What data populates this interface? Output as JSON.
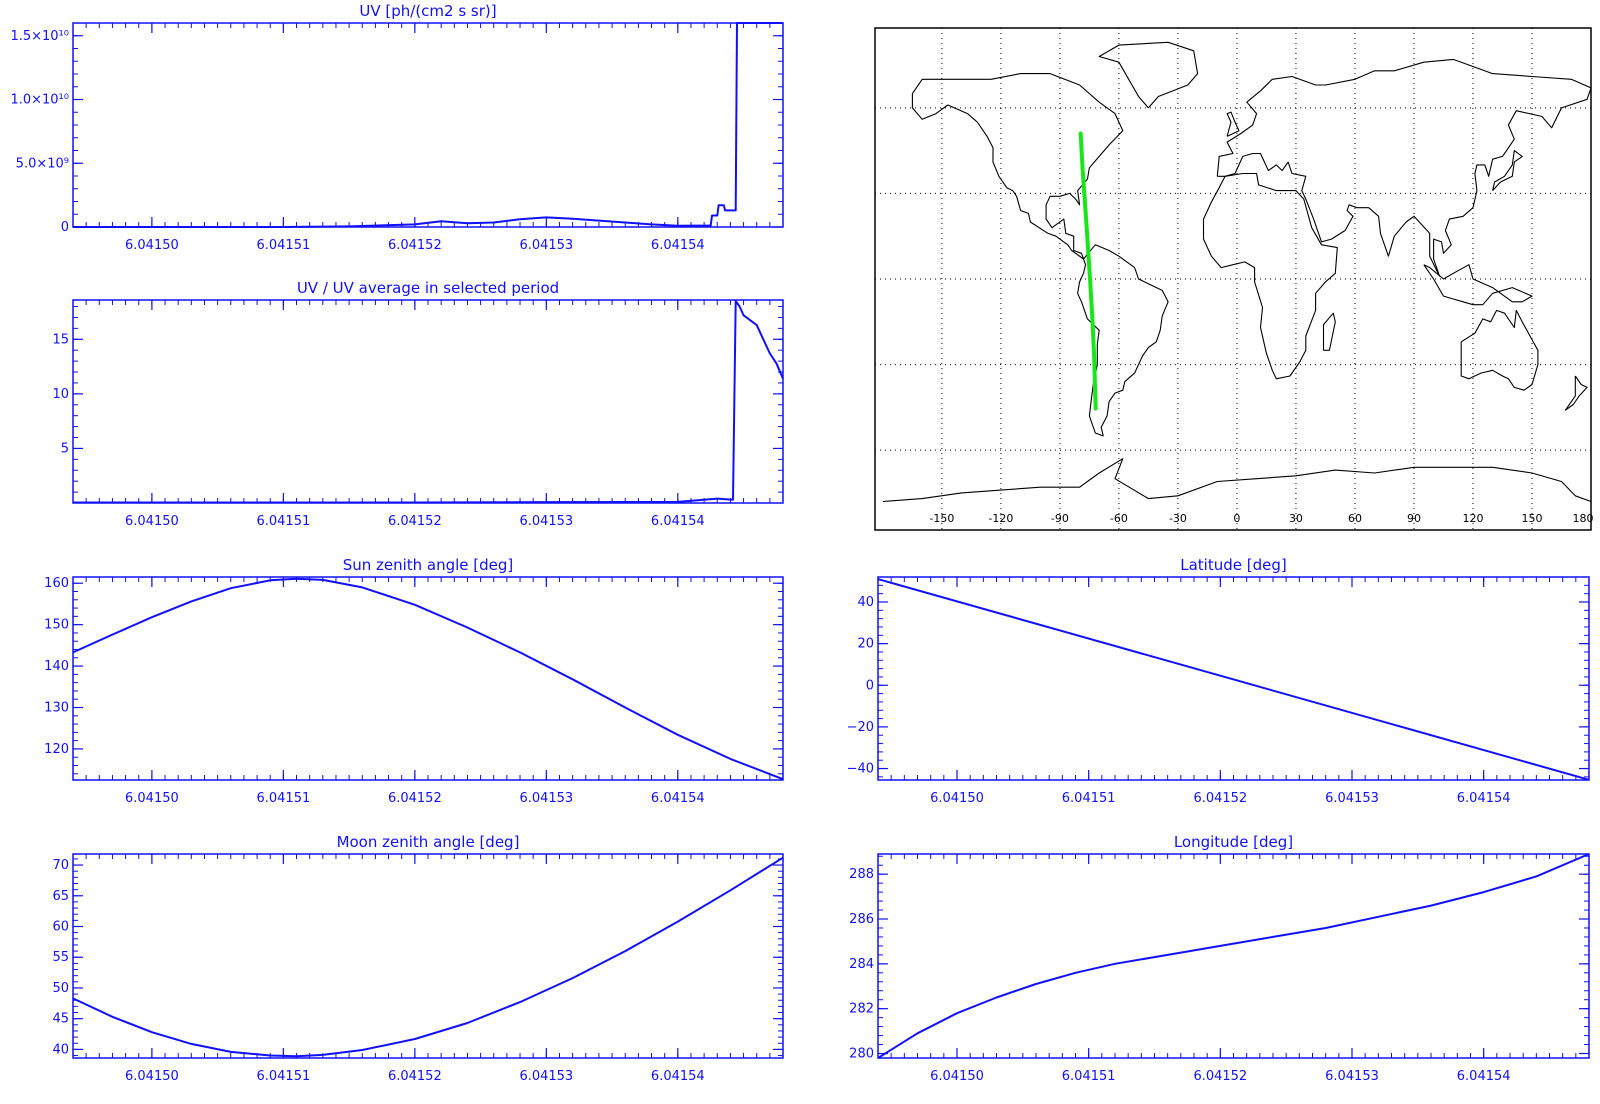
{
  "colors": {
    "axis": "#1010ff",
    "line": "#1010ff",
    "track": "#19e619",
    "coast": "#000000",
    "grid": "#000000"
  },
  "x_tick_labels": [
    "6.04150",
    "6.04151",
    "6.04152",
    "6.04153",
    "6.04154"
  ],
  "chart_data": [
    {
      "id": "uv",
      "type": "line",
      "title": "UV [ph/(cm2 s sr)]",
      "xlabel": "",
      "ylabel": "",
      "xlim": [
        6.041494,
        6.041548
      ],
      "ylim": [
        0,
        16000000000.0
      ],
      "y_ticks": [
        0,
        5000000000.0,
        10000000000.0,
        15000000000.0
      ],
      "y_tick_labels": [
        "0",
        "5.0×10⁹",
        "1.0×10¹⁰",
        "1.5×10¹⁰"
      ],
      "grid": false,
      "series": [
        {
          "x": [
            6.041494,
            6.04151,
            6.041515,
            6.04152,
            6.041522,
            6.041524,
            6.041526,
            6.041528,
            6.04153,
            6.041532,
            6.041534,
            6.041536,
            6.041538,
            6.04154,
            6.0415425,
            6.0415426,
            6.041543,
            6.0415431,
            6.0415435,
            6.0415436,
            6.0415444,
            6.0415445,
            6.041548
          ],
          "y": [
            0,
            0,
            50000000.0,
            200000000.0,
            450000000.0,
            300000000.0,
            350000000.0,
            600000000.0,
            750000000.0,
            650000000.0,
            500000000.0,
            350000000.0,
            200000000.0,
            100000000.0,
            120000000.0,
            900000000.0,
            900000000.0,
            1700000000.0,
            1700000000.0,
            1300000000.0,
            1300000000.0,
            16000000000.0,
            16000000000.0
          ]
        }
      ]
    },
    {
      "id": "ratio",
      "type": "line",
      "title": "UV / UV average in selected period",
      "xlabel": "",
      "ylabel": "",
      "xlim": [
        6.041494,
        6.041548
      ],
      "ylim": [
        0,
        18.6
      ],
      "y_ticks": [
        5,
        10,
        15
      ],
      "y_tick_labels": [
        "5",
        "10",
        "15"
      ],
      "grid": false,
      "series": [
        {
          "x": [
            6.041494,
            6.04152,
            6.04153,
            6.04154,
            6.041543,
            6.0415442,
            6.0415444,
            6.0415447,
            6.041545,
            6.041546,
            6.0415465,
            6.041547,
            6.0415475,
            6.041548
          ],
          "y": [
            0.05,
            0.05,
            0.08,
            0.1,
            0.4,
            0.3,
            18.5,
            18.0,
            17.2,
            16.3,
            15.0,
            13.7,
            12.8,
            11.4
          ]
        }
      ]
    },
    {
      "id": "sun",
      "type": "line",
      "title": "Sun zenith angle [deg]",
      "xlabel": "",
      "ylabel": "",
      "xlim": [
        6.041494,
        6.041548
      ],
      "ylim": [
        112.5,
        161.5
      ],
      "y_ticks": [
        120,
        130,
        140,
        150,
        160
      ],
      "y_tick_labels": [
        "120",
        "130",
        "140",
        "150",
        "160"
      ],
      "grid": false,
      "series": [
        {
          "x": [
            6.041494,
            6.041497,
            6.0415,
            6.041503,
            6.041506,
            6.041509,
            6.041511,
            6.041513,
            6.041516,
            6.04152,
            6.041524,
            6.041528,
            6.041532,
            6.041536,
            6.04154,
            6.041544,
            6.041548
          ],
          "y": [
            143.3,
            147.6,
            151.8,
            155.6,
            158.8,
            160.7,
            161.1,
            160.8,
            159.0,
            154.8,
            149.3,
            143.3,
            136.8,
            130.0,
            123.4,
            117.6,
            112.7
          ]
        }
      ]
    },
    {
      "id": "lat",
      "type": "line",
      "title": "Latitude [deg]",
      "xlabel": "",
      "ylabel": "",
      "xlim": [
        6.041494,
        6.041548
      ],
      "ylim": [
        -45.5,
        52
      ],
      "y_ticks": [
        -40,
        -20,
        0,
        20,
        40
      ],
      "y_tick_labels": [
        "−40",
        "−20",
        "0",
        "20",
        "40"
      ],
      "grid": false,
      "series": [
        {
          "x": [
            6.041494,
            6.04152,
            6.041548
          ],
          "y": [
            51.0,
            4.6,
            -45.4
          ]
        }
      ]
    },
    {
      "id": "moon",
      "type": "line",
      "title": "Moon zenith angle [deg]",
      "xlabel": "",
      "ylabel": "",
      "xlim": [
        6.041494,
        6.041548
      ],
      "ylim": [
        38.6,
        71.8
      ],
      "y_ticks": [
        40,
        45,
        50,
        55,
        60,
        65,
        70
      ],
      "y_tick_labels": [
        "40",
        "45",
        "50",
        "55",
        "60",
        "65",
        "70"
      ],
      "grid": false,
      "series": [
        {
          "x": [
            6.041494,
            6.041497,
            6.0415,
            6.041503,
            6.041506,
            6.041509,
            6.041511,
            6.041513,
            6.041516,
            6.04152,
            6.041524,
            6.041528,
            6.041532,
            6.041536,
            6.04154,
            6.041544,
            6.041548
          ],
          "y": [
            48.3,
            45.3,
            42.8,
            40.9,
            39.6,
            39.0,
            38.9,
            39.1,
            39.9,
            41.7,
            44.3,
            47.7,
            51.6,
            56.0,
            60.8,
            65.9,
            71.2
          ]
        }
      ]
    },
    {
      "id": "lon",
      "type": "line",
      "title": "Longitude [deg]",
      "xlabel": "",
      "ylabel": "",
      "xlim": [
        6.041494,
        6.041548
      ],
      "ylim": [
        279.8,
        288.9
      ],
      "y_ticks": [
        280,
        282,
        284,
        286,
        288
      ],
      "y_tick_labels": [
        "280",
        "282",
        "284",
        "286",
        "288"
      ],
      "grid": false,
      "series": [
        {
          "x": [
            6.041494,
            6.041497,
            6.0415,
            6.041503,
            6.041506,
            6.041509,
            6.041512,
            6.041516,
            6.04152,
            6.041524,
            6.041528,
            6.041532,
            6.041536,
            6.04154,
            6.041544,
            6.041548
          ],
          "y": [
            279.8,
            280.9,
            281.8,
            282.5,
            283.1,
            283.6,
            284.0,
            284.4,
            284.8,
            285.2,
            285.6,
            286.1,
            286.6,
            287.2,
            287.9,
            288.9
          ]
        }
      ]
    }
  ],
  "map": {
    "x_tick_labels": [
      "-150",
      "-120",
      "-90",
      "-60",
      "-30",
      "0",
      "30",
      "60",
      "90",
      "120",
      "150",
      "180"
    ],
    "x_ticks": [
      -150,
      -120,
      -90,
      -60,
      -30,
      0,
      30,
      60,
      90,
      120,
      150,
      180
    ],
    "lat_grid": [
      -60,
      -30,
      0,
      30,
      60
    ],
    "track": {
      "lon": [
        -79.5,
        -78.4,
        -77.1,
        -75.8,
        -74.6,
        -73.5,
        -72.6,
        -71.8
      ],
      "lat": [
        51.0,
        38.0,
        25.0,
        12.0,
        -1.0,
        -14.0,
        -27.0,
        -45.4
      ]
    }
  }
}
